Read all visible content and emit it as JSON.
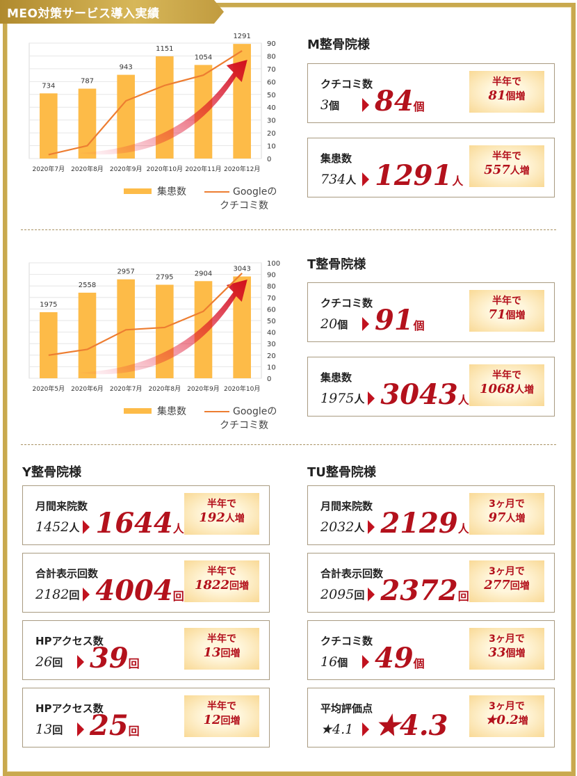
{
  "title": "MEO対策サービス導入実績",
  "colors": {
    "gold": "#c9a94e",
    "bar": "#fdbb48",
    "line": "#ed7d31",
    "red": "#b3111c"
  },
  "chart_data": [
    {
      "type": "bar",
      "categories": [
        "2020年7月",
        "2020年8月",
        "2020年9月",
        "2020年10月",
        "2020年11月",
        "2020年12月"
      ],
      "series": [
        {
          "name": "集患数",
          "values": [
            734,
            787,
            943,
            1151,
            1054,
            1291
          ]
        },
        {
          "name": "Googleのクチコミ数",
          "type": "line",
          "values": [
            3,
            10,
            45,
            57,
            65,
            84
          ]
        }
      ],
      "ylim_left": [
        0,
        1300
      ],
      "y_ticks_right": [
        0,
        10,
        20,
        30,
        40,
        50,
        60,
        70,
        80,
        90
      ],
      "legend": [
        "集患数",
        "Googleの",
        "クチコミ数"
      ]
    },
    {
      "type": "bar",
      "categories": [
        "2020年5月",
        "2020年6月",
        "2020年7月",
        "2020年8月",
        "2020年9月",
        "2020年10月"
      ],
      "series": [
        {
          "name": "集患数",
          "values": [
            1975,
            2558,
            2957,
            2795,
            2904,
            3043
          ]
        },
        {
          "name": "Googleのクチコミ数",
          "type": "line",
          "values": [
            20,
            25,
            42,
            44,
            58,
            91
          ]
        }
      ],
      "ylim_left": [
        0,
        3450
      ],
      "y_ticks_right": [
        0,
        10,
        20,
        30,
        40,
        50,
        60,
        70,
        80,
        90,
        100
      ],
      "legend": [
        "集患数",
        "Googleの",
        "クチコミ数"
      ]
    }
  ],
  "clinics": [
    {
      "name": "M整骨院様",
      "cards": [
        {
          "label": "クチコミ数",
          "before": "3",
          "before_unit": "個",
          "after": "84",
          "after_unit": "個",
          "badge_top": "半年で",
          "badge_num": "81",
          "badge_unit": "個増"
        },
        {
          "label": "集患数",
          "before": "734",
          "before_unit": "人",
          "after": "1291",
          "after_unit": "人",
          "badge_top": "半年で",
          "badge_num": "557",
          "badge_unit": "人増"
        }
      ]
    },
    {
      "name": "T整骨院様",
      "cards": [
        {
          "label": "クチコミ数",
          "before": "20",
          "before_unit": "個",
          "after": "91",
          "after_unit": "個",
          "badge_top": "半年で",
          "badge_num": "71",
          "badge_unit": "個増"
        },
        {
          "label": "集患数",
          "before": "1975",
          "before_unit": "人",
          "after": "3043",
          "after_unit": "人",
          "badge_top": "半年で",
          "badge_num": "1068",
          "badge_unit": "人増"
        }
      ]
    },
    {
      "name": "Y整骨院様",
      "cards": [
        {
          "label": "月間来院数",
          "before": "1452",
          "before_unit": "人",
          "after": "1644",
          "after_unit": "人",
          "badge_top": "半年で",
          "badge_num": "192",
          "badge_unit": "人増"
        },
        {
          "label": "合計表示回数",
          "before": "2182",
          "before_unit": "回",
          "after": "4004",
          "after_unit": "回",
          "badge_top": "半年で",
          "badge_num": "1822",
          "badge_unit": "回増"
        },
        {
          "label": "HPアクセス数",
          "before": "26",
          "before_unit": "回",
          "after": "39",
          "after_unit": "回",
          "badge_top": "半年で",
          "badge_num": "13",
          "badge_unit": "回増"
        },
        {
          "label": "HPアクセス数",
          "before": "13",
          "before_unit": "回",
          "after": "25",
          "after_unit": "回",
          "badge_top": "半年で",
          "badge_num": "12",
          "badge_unit": "回増"
        }
      ]
    },
    {
      "name": "TU整骨院様",
      "cards": [
        {
          "label": "月間来院数",
          "before": "2032",
          "before_unit": "人",
          "after": "2129",
          "after_unit": "人",
          "badge_top": "3ヶ月で",
          "badge_num": "97",
          "badge_unit": "人増"
        },
        {
          "label": "合計表示回数",
          "before": "2095",
          "before_unit": "回",
          "after": "2372",
          "after_unit": "回",
          "badge_top": "3ヶ月で",
          "badge_num": "277",
          "badge_unit": "回増"
        },
        {
          "label": "クチコミ数",
          "before": "16",
          "before_unit": "個",
          "after": "49",
          "after_unit": "個",
          "badge_top": "3ヶ月で",
          "badge_num": "33",
          "badge_unit": "個増"
        },
        {
          "label": "平均評価点",
          "before": "★4.1",
          "before_unit": "",
          "after": "★4.3",
          "after_unit": "",
          "badge_top": "3ヶ月で",
          "badge_num": "★0.2",
          "badge_unit": "増"
        }
      ]
    }
  ]
}
